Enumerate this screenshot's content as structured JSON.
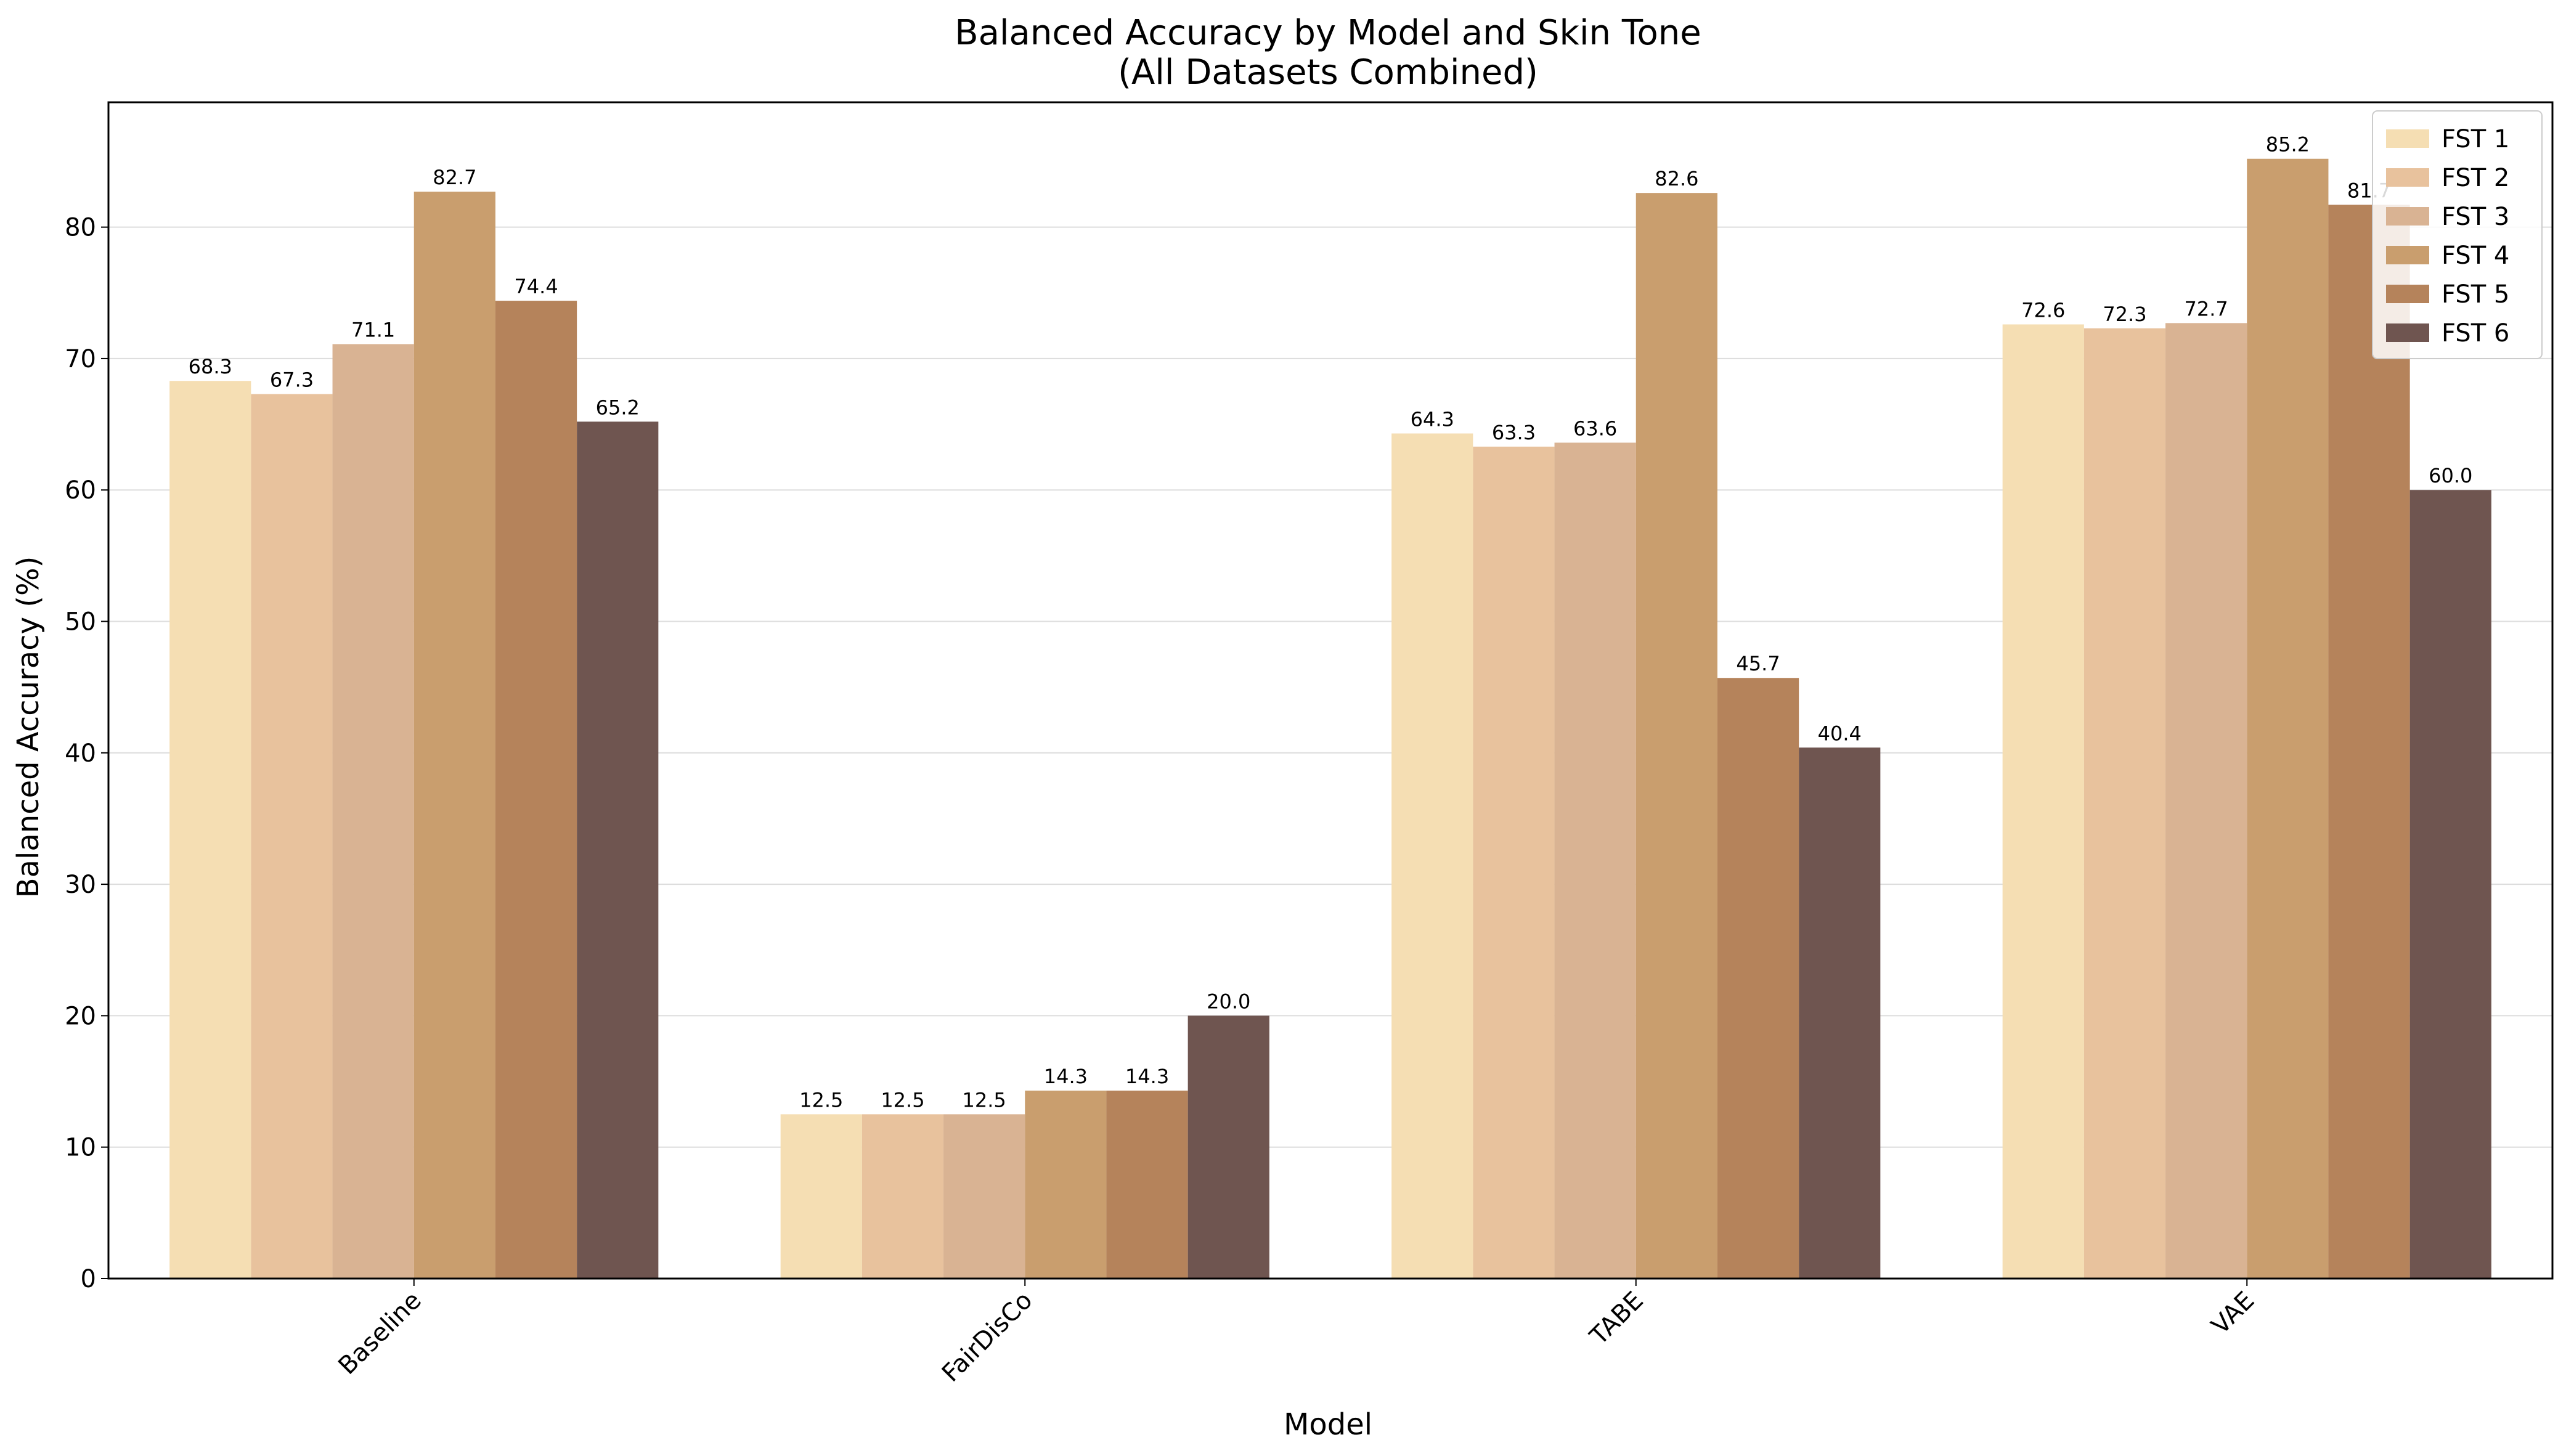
{
  "chart_data": {
    "type": "bar",
    "title": "Balanced Accuracy by Model and Skin Tone",
    "subtitle": "(All Datasets Combined)",
    "xlabel": "Model",
    "ylabel": "Balanced Accuracy (%)",
    "categories": [
      "Baseline",
      "FairDisCo",
      "TABE",
      "VAE"
    ],
    "ylim": [
      0,
      89.5
    ],
    "yticks": [
      0,
      10,
      20,
      30,
      40,
      50,
      60,
      70,
      80
    ],
    "grid": "horizontal",
    "legend_position": "top-right",
    "series": [
      {
        "name": "FST 1",
        "color": "#F5DEB3",
        "values": [
          68.3,
          12.5,
          64.3,
          72.6
        ]
      },
      {
        "name": "FST 2",
        "color": "#E8C29D",
        "values": [
          67.3,
          12.5,
          63.3,
          72.3
        ]
      },
      {
        "name": "FST 3",
        "color": "#D9B393",
        "values": [
          71.1,
          12.5,
          63.6,
          72.7
        ]
      },
      {
        "name": "FST 4",
        "color": "#C99E6E",
        "values": [
          82.7,
          14.3,
          82.6,
          85.2
        ]
      },
      {
        "name": "FST 5",
        "color": "#B5835B",
        "values": [
          74.4,
          14.3,
          45.7,
          81.7
        ]
      },
      {
        "name": "FST 6",
        "color": "#6F5550",
        "values": [
          65.2,
          20.0,
          40.4,
          60.0
        ]
      }
    ]
  }
}
